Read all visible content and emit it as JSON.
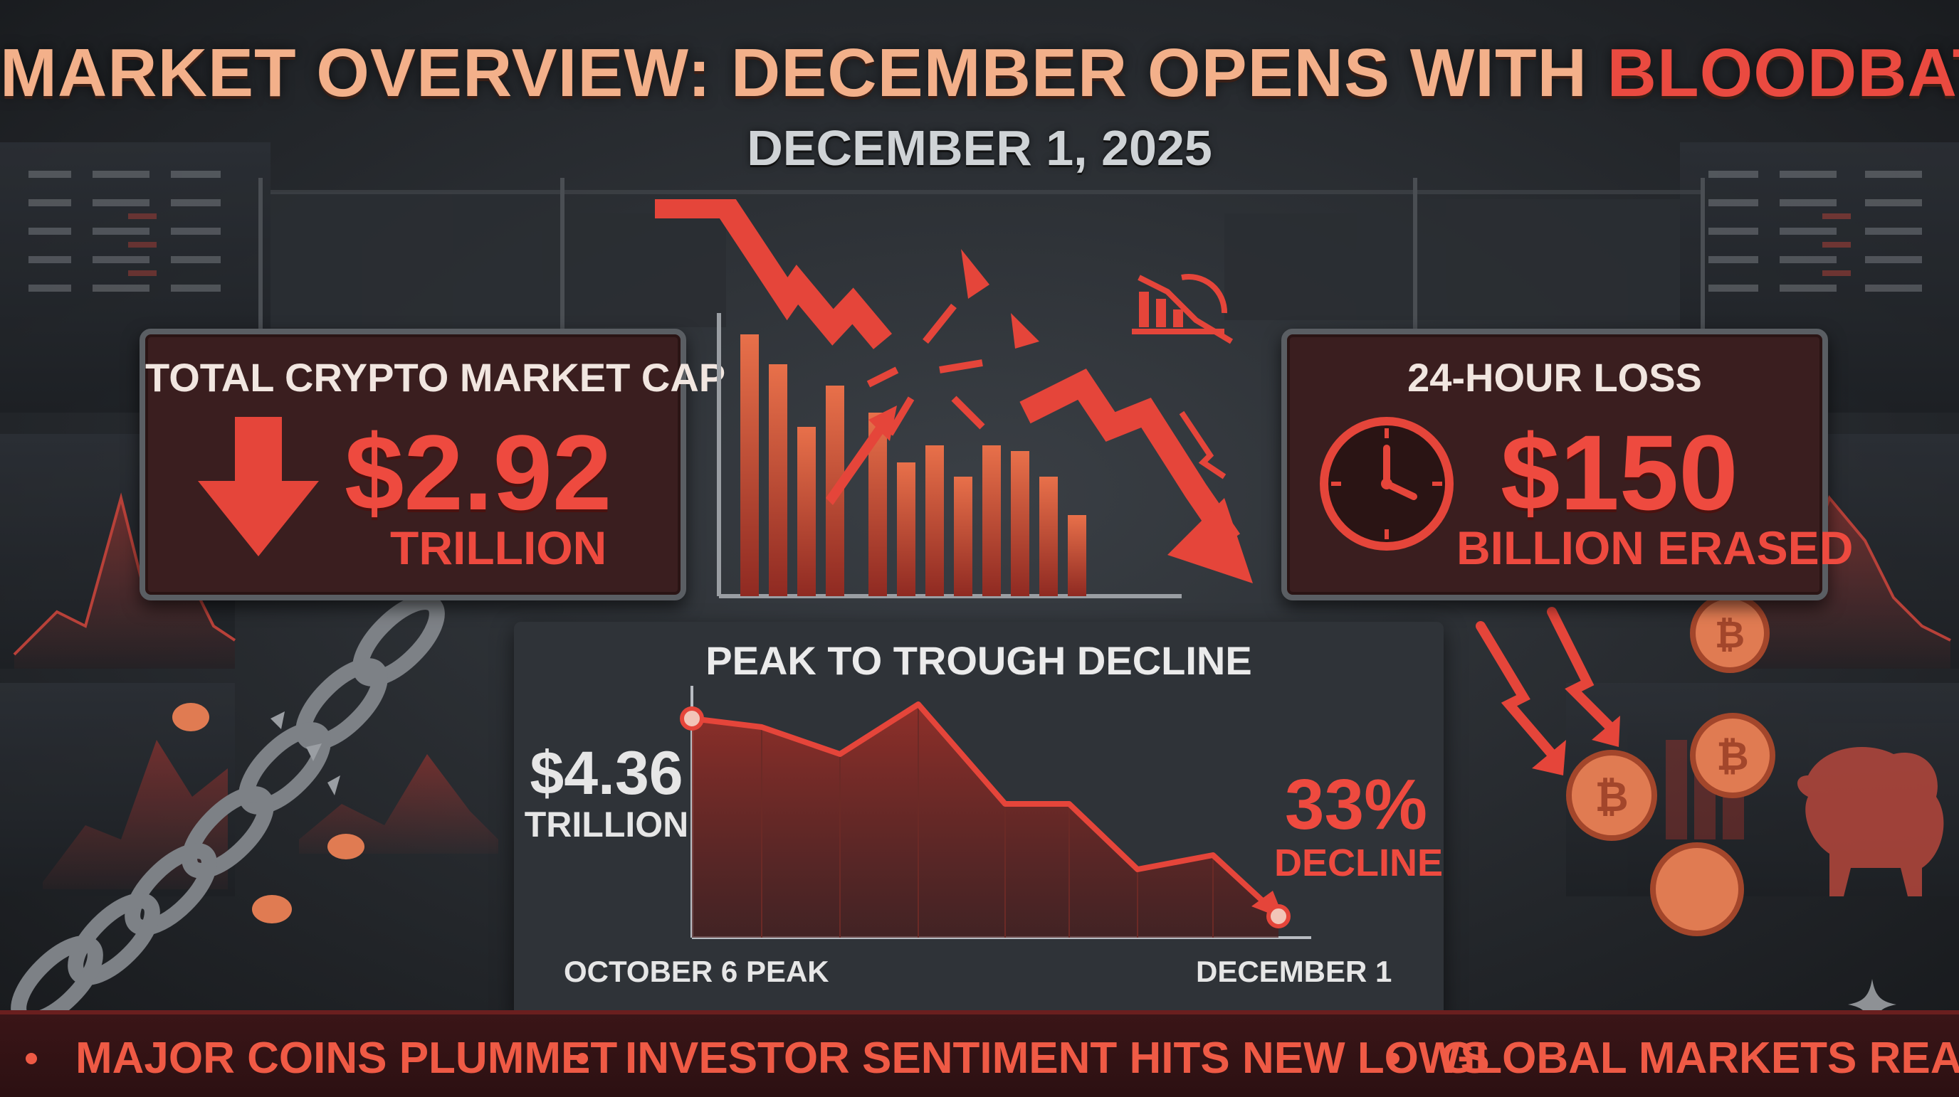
{
  "header": {
    "title_main": "MARKET OVERVIEW: DECEMBER OPENS WITH ",
    "title_accent": "BLOODBATH",
    "date": "DECEMBER 1, 2025"
  },
  "market_cap_card": {
    "label": "TOTAL CRYPTO MARKET CAP",
    "value": "$2.92",
    "unit": "TRILLION",
    "icon": "down-arrow-icon"
  },
  "loss_card": {
    "label": "24-HOUR LOSS",
    "value": "$150",
    "unit": "BILLION ERASED",
    "icon": "clock-icon"
  },
  "decline_panel": {
    "title": "PEAK TO TROUGH DECLINE",
    "peak_value": "$4.36",
    "peak_unit": "TRILLION",
    "decline_pct": "33%",
    "decline_label": "DECLINE",
    "x_start_label": "OCTOBER 6 PEAK",
    "x_end_label": "DECEMBER 1"
  },
  "ticker": {
    "items": [
      "MAJOR COINS PLUMMET",
      "INVESTOR SENTIMENT HITS NEW LOWS",
      "GLOBAL MARKETS REACT"
    ]
  },
  "colors": {
    "accent_red": "#ee4a3f",
    "title_peach": "#f3b08a",
    "background": "#25292e",
    "card_fill": "#3a1e1f",
    "coin": "#e07b52"
  }
}
